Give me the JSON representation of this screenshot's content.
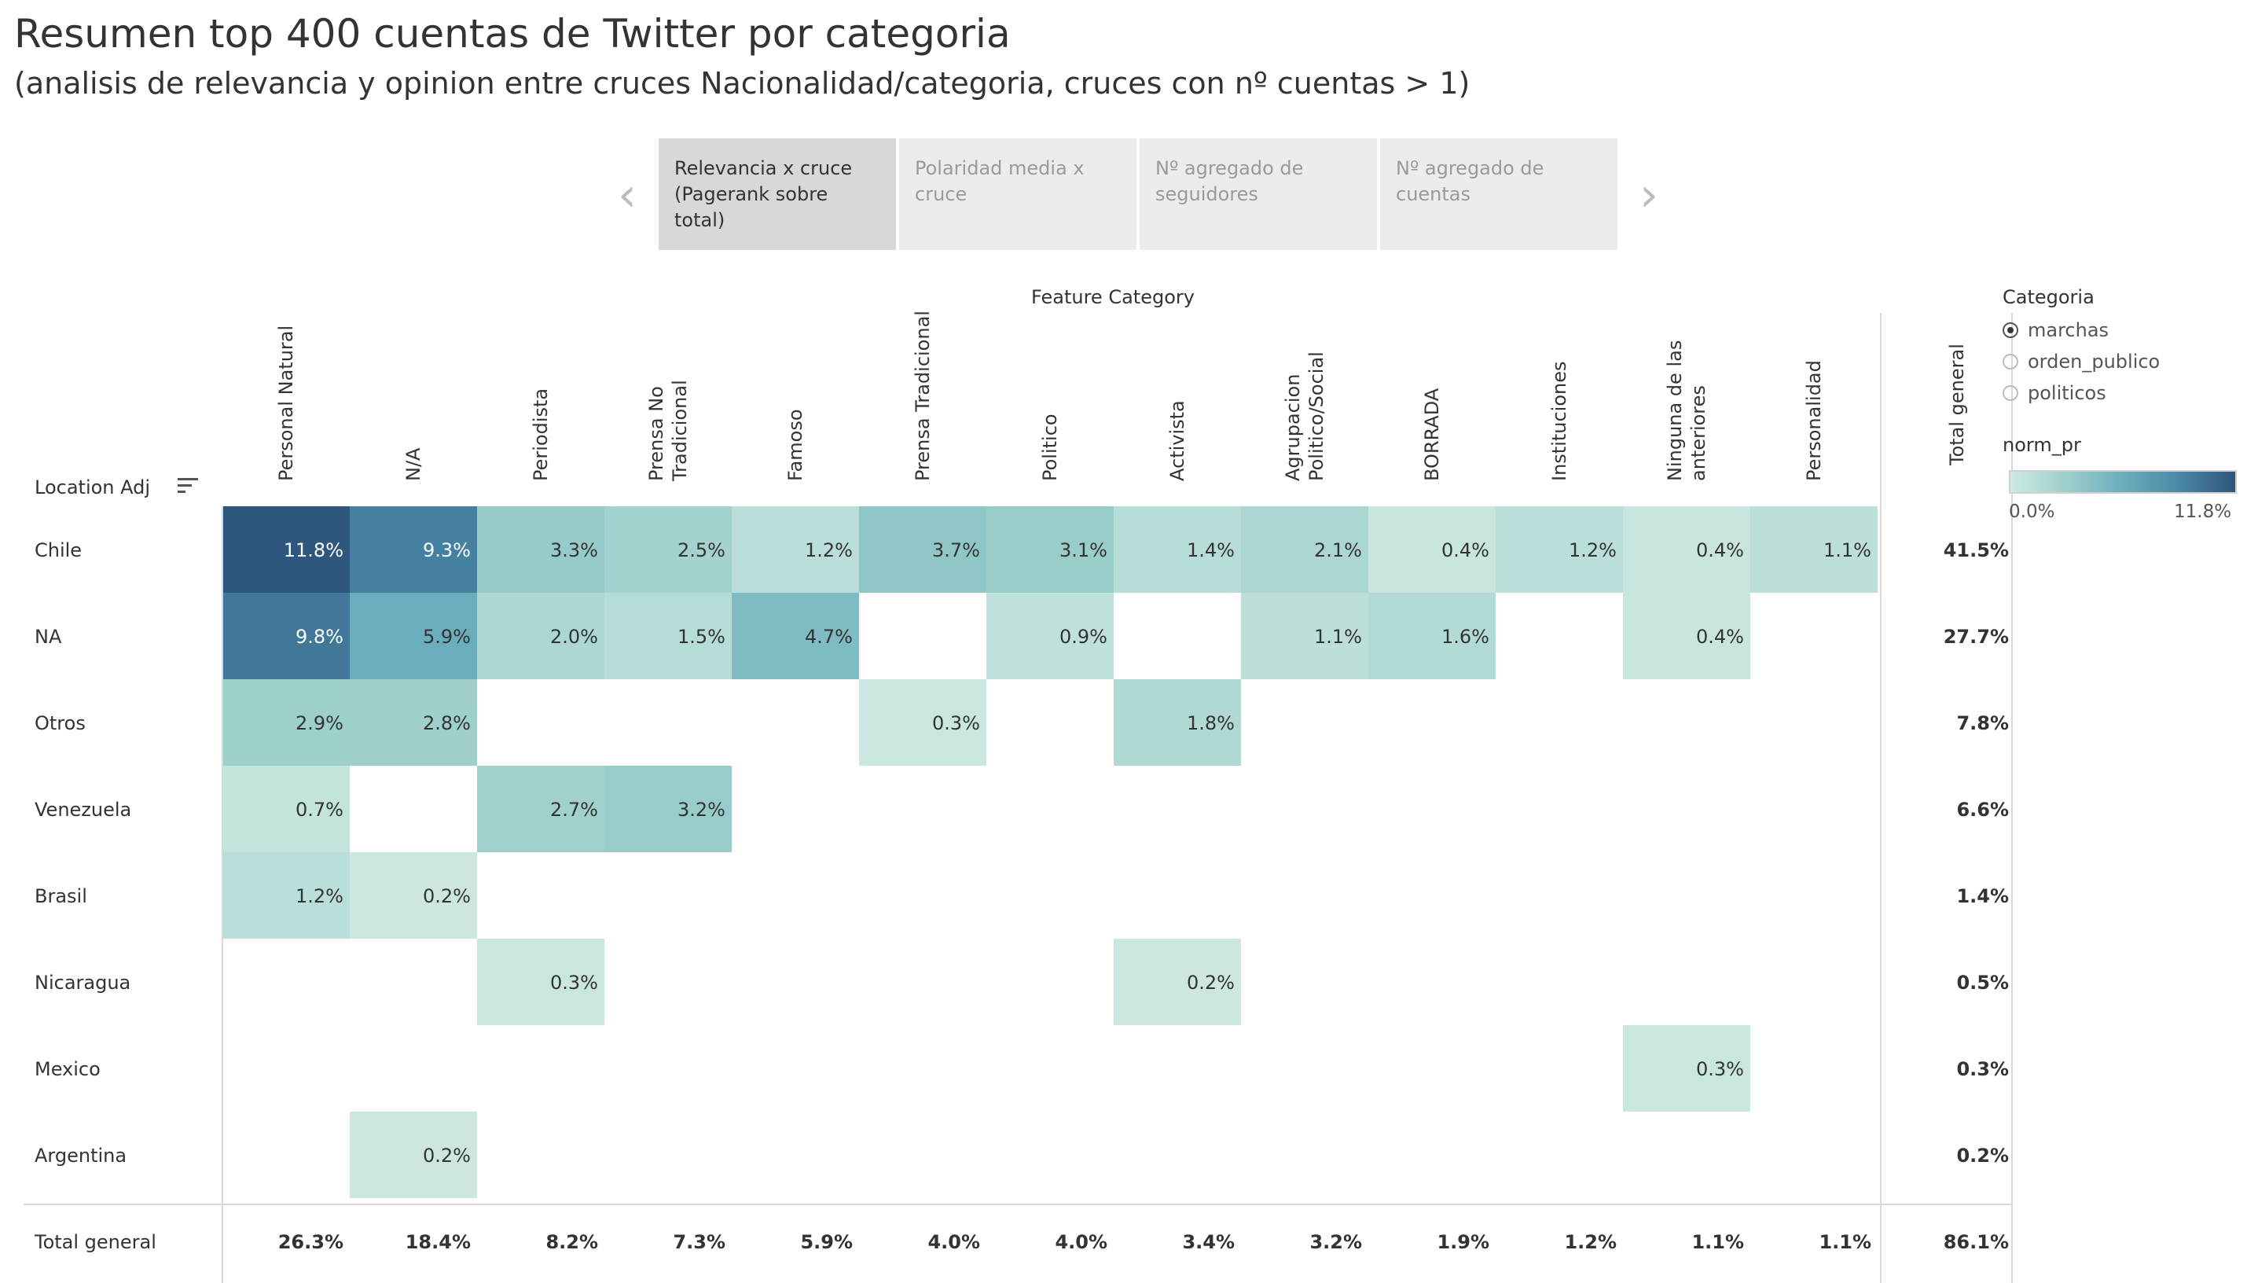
{
  "header": {
    "title": "Resumen top 400 cuentas de Twitter por categoria",
    "subtitle": "(analisis de relevancia y opinion entre cruces Nacionalidad/categoria, cruces con nº cuentas > 1)"
  },
  "tabs": [
    {
      "line1": "Relevancia x cruce",
      "line2": "(Pagerank sobre total)",
      "active": true
    },
    {
      "line1": "Polaridad media x",
      "line2": "cruce",
      "active": false
    },
    {
      "line1": "Nº agregado de",
      "line2": "seguidores",
      "active": false
    },
    {
      "line1": "Nº agregado de",
      "line2": "cuentas",
      "active": false
    }
  ],
  "nav": {
    "prev_glyph": "‹",
    "next_glyph": "›"
  },
  "legend": {
    "title": "Categoria",
    "options": [
      {
        "label": "marchas",
        "selected": true
      },
      {
        "label": "orden_publico",
        "selected": false
      },
      {
        "label": "politicos",
        "selected": false
      }
    ],
    "color_title": "norm_pr",
    "color_min": "0.0%",
    "color_max": "11.8%",
    "colors": [
      "#cfe9e3",
      "#2f567d"
    ]
  },
  "chart_data": {
    "type": "heatmap",
    "title": "Resumen top 400 cuentas de Twitter por categoria",
    "column_axis_title": "Feature Category",
    "row_axis_title": "Location Adj",
    "columns": [
      [
        "Personal Natural"
      ],
      [
        "N/A"
      ],
      [
        "Periodista"
      ],
      [
        "Prensa No",
        "Tradicional"
      ],
      [
        "Famoso"
      ],
      [
        "Prensa Tradicional"
      ],
      [
        "Politico"
      ],
      [
        "Activista"
      ],
      [
        "Agrupacion",
        "Politico/Social"
      ],
      [
        "BORRADA"
      ],
      [
        "Instituciones"
      ],
      [
        "Ninguna de las",
        "anteriores"
      ],
      [
        "Personalidad"
      ]
    ],
    "total_label": "Total general",
    "rows": [
      "Chile",
      "NA",
      "Otros",
      "Venezuela",
      "Brasil",
      "Nicaragua",
      "Mexico",
      "Argentina"
    ],
    "values": [
      [
        11.8,
        9.3,
        3.3,
        2.5,
        1.2,
        3.7,
        3.1,
        1.4,
        2.1,
        0.4,
        1.2,
        0.4,
        1.1
      ],
      [
        9.8,
        5.9,
        2.0,
        1.5,
        4.7,
        null,
        0.9,
        null,
        1.1,
        1.6,
        null,
        0.4,
        null
      ],
      [
        2.9,
        2.8,
        null,
        null,
        null,
        0.3,
        null,
        1.8,
        null,
        null,
        null,
        null,
        null
      ],
      [
        0.7,
        null,
        2.7,
        3.2,
        null,
        null,
        null,
        null,
        null,
        null,
        null,
        null,
        null
      ],
      [
        1.2,
        0.2,
        null,
        null,
        null,
        null,
        null,
        null,
        null,
        null,
        null,
        null,
        null
      ],
      [
        null,
        null,
        0.3,
        null,
        null,
        null,
        null,
        0.2,
        null,
        null,
        null,
        null,
        null
      ],
      [
        null,
        null,
        null,
        null,
        null,
        null,
        null,
        null,
        null,
        null,
        null,
        0.3,
        null
      ],
      [
        null,
        0.2,
        null,
        null,
        null,
        null,
        null,
        null,
        null,
        null,
        null,
        null,
        null
      ]
    ],
    "row_totals": [
      41.5,
      27.7,
      7.8,
      6.6,
      1.4,
      0.5,
      0.3,
      0.2
    ],
    "column_totals": [
      26.3,
      18.4,
      8.2,
      7.3,
      5.9,
      4.0,
      4.0,
      3.4,
      3.2,
      1.9,
      1.2,
      1.1,
      1.1
    ],
    "grand_total": 86.1,
    "unit": "%",
    "color_range": [
      0.0,
      11.8
    ]
  }
}
